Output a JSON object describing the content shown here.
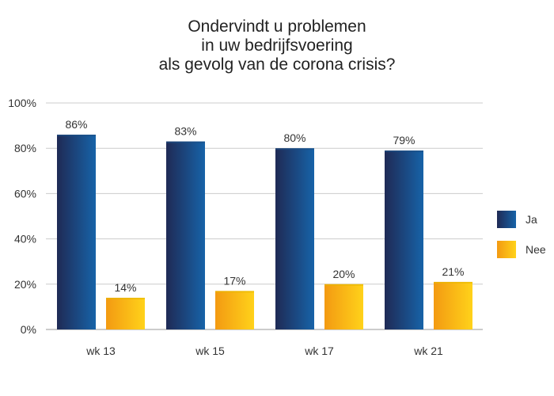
{
  "chart_data": {
    "type": "bar",
    "title": [
      "Ondervindt u problemen",
      "in uw bedrijfsvoering",
      "als gevolg van de corona crisis?"
    ],
    "categories": [
      "wk 13",
      "wk 15",
      "wk 17",
      "wk 21"
    ],
    "series": [
      {
        "name": "Ja",
        "values": [
          86,
          83,
          80,
          79
        ],
        "labels": [
          "86%",
          "83%",
          "80%",
          "79%"
        ]
      },
      {
        "name": "Nee",
        "values": [
          14,
          17,
          20,
          21
        ],
        "labels": [
          "14%",
          "17%",
          "20%",
          "21%"
        ]
      }
    ],
    "ylim": [
      0,
      100
    ],
    "yticks": [
      0,
      20,
      40,
      60,
      80,
      100
    ],
    "ytick_labels": [
      "0%",
      "20%",
      "40%",
      "60%",
      "80%",
      "100%"
    ],
    "grid": true,
    "legend": "right",
    "colors": {
      "Ja": {
        "dark": "#1f2a55",
        "light": "#1763a8"
      },
      "Nee": {
        "dark": "#f39a12",
        "light": "#ffd21a"
      },
      "grid": "#cccccc",
      "axis": "#999999"
    }
  }
}
